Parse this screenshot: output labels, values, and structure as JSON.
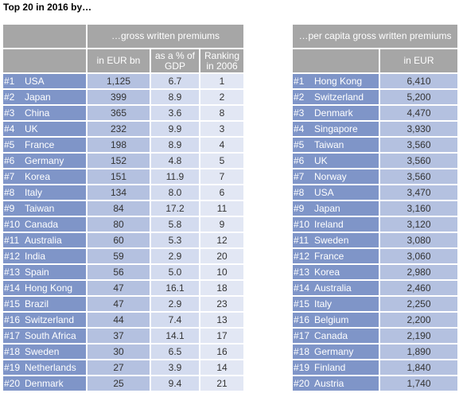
{
  "title": "Top 20 in 2016 by…",
  "left_table": {
    "group_header": "…gross written premiums",
    "col_headers": [
      "in EUR bn",
      "as a % of GDP",
      "Ranking in 2006"
    ],
    "rows": [
      {
        "rank": "#1",
        "country": "USA",
        "eur_bn": "1,125",
        "pct_gdp": "6.7",
        "rank2006": "1"
      },
      {
        "rank": "#2",
        "country": "Japan",
        "eur_bn": "399",
        "pct_gdp": "8.9",
        "rank2006": "2"
      },
      {
        "rank": "#3",
        "country": "China",
        "eur_bn": "365",
        "pct_gdp": "3.6",
        "rank2006": "8"
      },
      {
        "rank": "#4",
        "country": "UK",
        "eur_bn": "232",
        "pct_gdp": "9.9",
        "rank2006": "3"
      },
      {
        "rank": "#5",
        "country": "France",
        "eur_bn": "198",
        "pct_gdp": "8.9",
        "rank2006": "4"
      },
      {
        "rank": "#6",
        "country": "Germany",
        "eur_bn": "152",
        "pct_gdp": "4.8",
        "rank2006": "5"
      },
      {
        "rank": "#7",
        "country": "Korea",
        "eur_bn": "151",
        "pct_gdp": "11.9",
        "rank2006": "7"
      },
      {
        "rank": "#8",
        "country": "Italy",
        "eur_bn": "134",
        "pct_gdp": "8.0",
        "rank2006": "6"
      },
      {
        "rank": "#9",
        "country": "Taiwan",
        "eur_bn": "84",
        "pct_gdp": "17.2",
        "rank2006": "11"
      },
      {
        "rank": "#10",
        "country": "Canada",
        "eur_bn": "80",
        "pct_gdp": "5.8",
        "rank2006": "9"
      },
      {
        "rank": "#11",
        "country": "Australia",
        "eur_bn": "60",
        "pct_gdp": "5.3",
        "rank2006": "12"
      },
      {
        "rank": "#12",
        "country": "India",
        "eur_bn": "59",
        "pct_gdp": "2.9",
        "rank2006": "20"
      },
      {
        "rank": "#13",
        "country": "Spain",
        "eur_bn": "56",
        "pct_gdp": "5.0",
        "rank2006": "10"
      },
      {
        "rank": "#14",
        "country": "Hong Kong",
        "eur_bn": "47",
        "pct_gdp": "16.1",
        "rank2006": "18"
      },
      {
        "rank": "#15",
        "country": "Brazil",
        "eur_bn": "47",
        "pct_gdp": "2.9",
        "rank2006": "23"
      },
      {
        "rank": "#16",
        "country": "Switzerland",
        "eur_bn": "44",
        "pct_gdp": "7.4",
        "rank2006": "13"
      },
      {
        "rank": "#17",
        "country": "South Africa",
        "eur_bn": "37",
        "pct_gdp": "14.1",
        "rank2006": "17"
      },
      {
        "rank": "#18",
        "country": "Sweden",
        "eur_bn": "30",
        "pct_gdp": "6.5",
        "rank2006": "16"
      },
      {
        "rank": "#19",
        "country": "Netherlands",
        "eur_bn": "27",
        "pct_gdp": "3.9",
        "rank2006": "14"
      },
      {
        "rank": "#20",
        "country": "Denmark",
        "eur_bn": "25",
        "pct_gdp": "9.4",
        "rank2006": "21"
      }
    ]
  },
  "right_table": {
    "group_header": "…per capita gross written premiums",
    "col_header": "in EUR",
    "rows": [
      {
        "rank": "#1",
        "country": "Hong Kong",
        "eur": "6,410"
      },
      {
        "rank": "#2",
        "country": "Switzerland",
        "eur": "5,200"
      },
      {
        "rank": "#3",
        "country": "Denmark",
        "eur": "4,470"
      },
      {
        "rank": "#4",
        "country": "Singapore",
        "eur": "3,930"
      },
      {
        "rank": "#5",
        "country": "Taiwan",
        "eur": "3,560"
      },
      {
        "rank": "#6",
        "country": "UK",
        "eur": "3,560"
      },
      {
        "rank": "#7",
        "country": "Norway",
        "eur": "3,560"
      },
      {
        "rank": "#8",
        "country": "USA",
        "eur": "3,470"
      },
      {
        "rank": "#9",
        "country": "Japan",
        "eur": "3,160"
      },
      {
        "rank": "#10",
        "country": "Ireland",
        "eur": "3,120"
      },
      {
        "rank": "#11",
        "country": "Sweden",
        "eur": "3,080"
      },
      {
        "rank": "#12",
        "country": "France",
        "eur": "3,060"
      },
      {
        "rank": "#13",
        "country": "Korea",
        "eur": "2,980"
      },
      {
        "rank": "#14",
        "country": "Australia",
        "eur": "2,460"
      },
      {
        "rank": "#15",
        "country": "Italy",
        "eur": "2,250"
      },
      {
        "rank": "#16",
        "country": "Belgium",
        "eur": "2,200"
      },
      {
        "rank": "#17",
        "country": "Canada",
        "eur": "2,190"
      },
      {
        "rank": "#18",
        "country": "Germany",
        "eur": "1,890"
      },
      {
        "rank": "#19",
        "country": "Finland",
        "eur": "1,840"
      },
      {
        "rank": "#20",
        "country": "Austria",
        "eur": "1,740"
      }
    ]
  },
  "colors": {
    "header_grey": "#a6a6a6",
    "rank_blue": "#7f95c8",
    "value_blue": "#b4c1e0",
    "value_light": "#d3dbef",
    "value_lighter": "#e2e7f4"
  }
}
